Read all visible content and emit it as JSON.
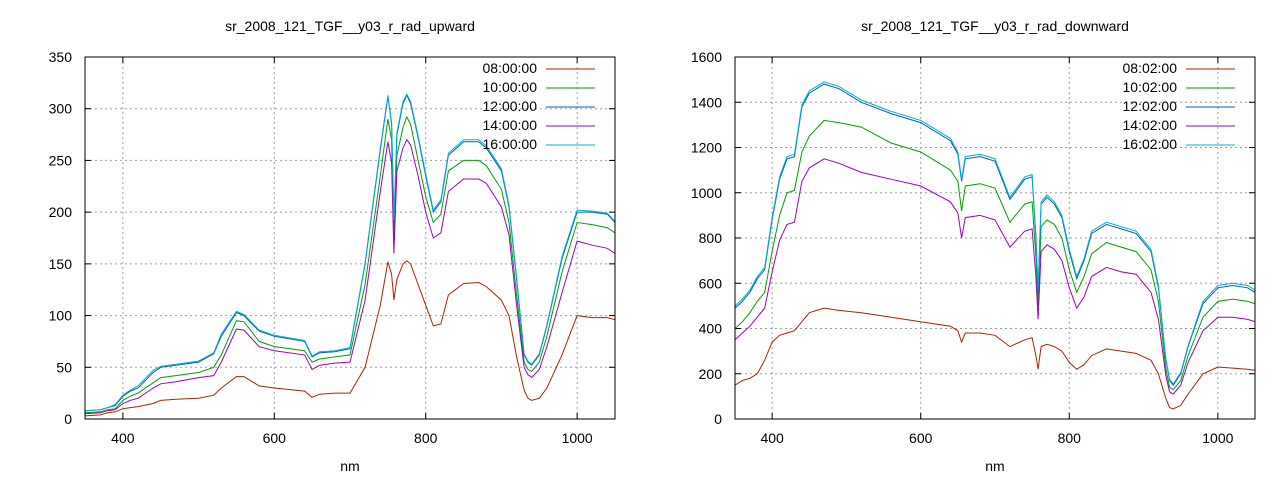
{
  "chart_data": [
    {
      "type": "line",
      "title": "sr_2008_121_TGF__y03_r_rad_upward",
      "xlabel": "nm",
      "ylabel": "",
      "xlim": [
        350,
        1050
      ],
      "ylim": [
        0,
        350
      ],
      "xticks": [
        400,
        600,
        800,
        1000
      ],
      "yticks": [
        0,
        50,
        100,
        150,
        200,
        250,
        300,
        350
      ],
      "grid": true,
      "legend_position": "top-right",
      "series": [
        {
          "name": "08:00:00",
          "color": "#b22200",
          "x": [
            350,
            370,
            380,
            390,
            400,
            410,
            420,
            440,
            450,
            470,
            500,
            520,
            530,
            550,
            560,
            580,
            600,
            640,
            650,
            660,
            680,
            700,
            720,
            740,
            750,
            755,
            758,
            762,
            770,
            775,
            780,
            790,
            800,
            810,
            820,
            830,
            850,
            870,
            880,
            900,
            910,
            920,
            930,
            935,
            940,
            950,
            960,
            980,
            1000,
            1020,
            1040,
            1050
          ],
          "y": [
            3,
            4,
            6,
            7,
            10,
            11,
            12,
            15,
            18,
            19,
            20,
            23,
            30,
            41,
            41,
            32,
            30,
            27,
            21,
            24,
            25,
            25,
            50,
            110,
            152,
            140,
            115,
            135,
            150,
            153,
            150,
            130,
            110,
            90,
            92,
            120,
            131,
            132,
            128,
            115,
            100,
            60,
            28,
            20,
            18,
            20,
            30,
            62,
            100,
            98,
            98,
            96
          ]
        },
        {
          "name": "10:00:00",
          "color": "#00a000",
          "x": [
            350,
            370,
            380,
            390,
            400,
            410,
            420,
            440,
            450,
            470,
            500,
            520,
            530,
            550,
            560,
            580,
            600,
            640,
            650,
            660,
            680,
            700,
            720,
            740,
            750,
            755,
            758,
            762,
            770,
            775,
            780,
            790,
            800,
            810,
            820,
            830,
            850,
            870,
            880,
            900,
            910,
            920,
            930,
            935,
            940,
            950,
            960,
            980,
            1000,
            1020,
            1040,
            1050
          ],
          "y": [
            6,
            7,
            9,
            10,
            18,
            22,
            25,
            35,
            40,
            42,
            45,
            50,
            62,
            95,
            94,
            75,
            70,
            66,
            55,
            58,
            60,
            62,
            130,
            235,
            290,
            270,
            170,
            255,
            282,
            292,
            285,
            250,
            215,
            190,
            198,
            240,
            250,
            250,
            245,
            222,
            190,
            120,
            55,
            48,
            46,
            55,
            80,
            142,
            190,
            188,
            185,
            180
          ]
        },
        {
          "name": "12:00:00",
          "color": "#0060b0",
          "x": [
            350,
            370,
            380,
            390,
            400,
            410,
            420,
            440,
            450,
            470,
            500,
            520,
            530,
            550,
            560,
            580,
            600,
            640,
            650,
            660,
            680,
            700,
            720,
            740,
            750,
            755,
            758,
            762,
            770,
            775,
            780,
            790,
            800,
            810,
            820,
            830,
            850,
            870,
            880,
            900,
            910,
            920,
            930,
            935,
            940,
            950,
            960,
            980,
            1000,
            1020,
            1040,
            1050
          ],
          "y": [
            8,
            9,
            11,
            13,
            22,
            27,
            30,
            45,
            50,
            52,
            55,
            63,
            80,
            103,
            100,
            85,
            80,
            75,
            60,
            64,
            65,
            68,
            150,
            260,
            312,
            285,
            190,
            275,
            305,
            313,
            305,
            272,
            235,
            200,
            210,
            255,
            268,
            268,
            262,
            240,
            205,
            135,
            62,
            55,
            52,
            62,
            90,
            155,
            200,
            200,
            198,
            190
          ]
        },
        {
          "name": "14:00:00",
          "color": "#a000c0",
          "x": [
            350,
            370,
            380,
            390,
            400,
            410,
            420,
            440,
            450,
            470,
            500,
            520,
            530,
            550,
            560,
            580,
            600,
            640,
            650,
            660,
            680,
            700,
            720,
            740,
            750,
            755,
            758,
            762,
            770,
            775,
            780,
            790,
            800,
            810,
            820,
            830,
            850,
            870,
            880,
            900,
            910,
            920,
            930,
            935,
            940,
            950,
            960,
            980,
            1000,
            1020,
            1040,
            1050
          ],
          "y": [
            5,
            6,
            8,
            9,
            15,
            18,
            20,
            30,
            34,
            36,
            40,
            42,
            55,
            87,
            86,
            70,
            66,
            62,
            48,
            52,
            54,
            55,
            115,
            220,
            268,
            248,
            160,
            240,
            262,
            270,
            265,
            235,
            200,
            175,
            180,
            220,
            232,
            232,
            228,
            205,
            178,
            110,
            50,
            43,
            40,
            48,
            70,
            122,
            172,
            168,
            165,
            160
          ]
        },
        {
          "name": "16:00:00",
          "color": "#00b0d0",
          "x": [
            350,
            370,
            380,
            390,
            400,
            410,
            420,
            440,
            450,
            470,
            500,
            520,
            530,
            550,
            560,
            580,
            600,
            640,
            650,
            660,
            680,
            700,
            720,
            740,
            750,
            755,
            758,
            762,
            770,
            775,
            780,
            790,
            800,
            810,
            820,
            830,
            850,
            870,
            880,
            900,
            910,
            920,
            930,
            935,
            940,
            950,
            960,
            980,
            1000,
            1020,
            1040,
            1050
          ],
          "y": [
            8,
            9,
            11,
            14,
            23,
            28,
            32,
            47,
            51,
            53,
            56,
            64,
            82,
            104,
            101,
            86,
            81,
            76,
            61,
            65,
            66,
            69,
            151,
            262,
            313,
            287,
            192,
            277,
            307,
            314,
            307,
            274,
            237,
            202,
            212,
            257,
            270,
            270,
            264,
            242,
            207,
            137,
            63,
            56,
            53,
            63,
            91,
            157,
            202,
            201,
            199,
            191
          ]
        }
      ]
    },
    {
      "type": "line",
      "title": "sr_2008_121_TGF__y03_r_rad_downward",
      "xlabel": "nm",
      "ylabel": "",
      "xlim": [
        350,
        1050
      ],
      "ylim": [
        0,
        1600
      ],
      "xticks": [
        400,
        600,
        800,
        1000
      ],
      "yticks": [
        0,
        200,
        400,
        600,
        800,
        1000,
        1200,
        1400,
        1600
      ],
      "grid": true,
      "legend_position": "top-right",
      "series": [
        {
          "name": "08:02:00",
          "color": "#b22200",
          "x": [
            350,
            360,
            370,
            380,
            390,
            400,
            410,
            420,
            430,
            440,
            450,
            470,
            490,
            520,
            560,
            600,
            640,
            650,
            655,
            660,
            680,
            700,
            720,
            740,
            750,
            755,
            758,
            762,
            770,
            780,
            790,
            800,
            810,
            820,
            830,
            850,
            870,
            890,
            910,
            920,
            930,
            935,
            940,
            950,
            960,
            980,
            1000,
            1020,
            1040,
            1050
          ],
          "y": [
            150,
            170,
            180,
            200,
            260,
            340,
            370,
            380,
            390,
            430,
            470,
            490,
            480,
            470,
            450,
            430,
            410,
            390,
            340,
            380,
            380,
            370,
            320,
            350,
            360,
            280,
            220,
            320,
            330,
            320,
            300,
            250,
            220,
            240,
            280,
            310,
            300,
            290,
            260,
            200,
            90,
            50,
            45,
            60,
            110,
            200,
            230,
            225,
            220,
            215
          ]
        },
        {
          "name": "10:02:00",
          "color": "#00a000",
          "x": [
            350,
            360,
            370,
            380,
            390,
            400,
            410,
            420,
            430,
            440,
            450,
            470,
            490,
            520,
            560,
            600,
            640,
            650,
            655,
            660,
            680,
            700,
            720,
            740,
            750,
            755,
            758,
            762,
            770,
            780,
            790,
            800,
            810,
            820,
            830,
            850,
            870,
            890,
            910,
            920,
            930,
            935,
            940,
            950,
            960,
            980,
            1000,
            1020,
            1040,
            1050
          ],
          "y": [
            400,
            430,
            470,
            520,
            560,
            740,
            900,
            1000,
            1010,
            1180,
            1250,
            1320,
            1310,
            1290,
            1220,
            1180,
            1100,
            1050,
            920,
            1030,
            1040,
            1020,
            870,
            950,
            960,
            720,
            500,
            850,
            880,
            860,
            800,
            660,
            560,
            630,
            730,
            780,
            760,
            740,
            660,
            520,
            220,
            140,
            130,
            170,
            280,
            450,
            520,
            530,
            520,
            510
          ]
        },
        {
          "name": "12:02:00",
          "color": "#0060b0",
          "x": [
            350,
            360,
            370,
            380,
            390,
            400,
            410,
            420,
            430,
            440,
            450,
            470,
            490,
            520,
            560,
            600,
            640,
            650,
            655,
            660,
            680,
            700,
            720,
            740,
            750,
            755,
            758,
            762,
            770,
            780,
            790,
            800,
            810,
            820,
            830,
            850,
            870,
            890,
            910,
            920,
            930,
            935,
            940,
            950,
            960,
            980,
            1000,
            1020,
            1040,
            1050
          ],
          "y": [
            490,
            520,
            560,
            620,
            660,
            880,
            1060,
            1150,
            1160,
            1380,
            1440,
            1480,
            1460,
            1400,
            1350,
            1310,
            1230,
            1170,
            1050,
            1150,
            1160,
            1140,
            970,
            1060,
            1070,
            800,
            560,
            950,
            980,
            950,
            890,
            740,
            620,
            700,
            820,
            860,
            840,
            820,
            740,
            580,
            260,
            170,
            150,
            200,
            320,
            510,
            580,
            590,
            580,
            560
          ]
        },
        {
          "name": "14:02:00",
          "color": "#a000c0",
          "x": [
            350,
            360,
            370,
            380,
            390,
            400,
            410,
            420,
            430,
            440,
            450,
            470,
            490,
            520,
            560,
            600,
            640,
            650,
            655,
            660,
            680,
            700,
            720,
            740,
            750,
            755,
            758,
            762,
            770,
            780,
            790,
            800,
            810,
            820,
            830,
            850,
            870,
            890,
            910,
            920,
            930,
            935,
            940,
            950,
            960,
            980,
            1000,
            1020,
            1040,
            1050
          ],
          "y": [
            350,
            380,
            410,
            450,
            490,
            650,
            790,
            860,
            870,
            1050,
            1110,
            1150,
            1130,
            1090,
            1060,
            1030,
            960,
            910,
            800,
            890,
            900,
            880,
            760,
            830,
            840,
            630,
            440,
            740,
            770,
            750,
            700,
            580,
            490,
            540,
            630,
            670,
            650,
            640,
            560,
            440,
            190,
            120,
            110,
            150,
            250,
            390,
            450,
            450,
            440,
            430
          ]
        },
        {
          "name": "16:02:00",
          "color": "#00b0d0",
          "x": [
            350,
            360,
            370,
            380,
            390,
            400,
            410,
            420,
            430,
            440,
            450,
            470,
            490,
            520,
            560,
            600,
            640,
            650,
            655,
            660,
            680,
            700,
            720,
            740,
            750,
            755,
            758,
            762,
            770,
            780,
            790,
            800,
            810,
            820,
            830,
            850,
            870,
            890,
            910,
            920,
            930,
            935,
            940,
            950,
            960,
            980,
            1000,
            1020,
            1040,
            1050
          ],
          "y": [
            500,
            530,
            570,
            630,
            670,
            890,
            1070,
            1160,
            1170,
            1390,
            1450,
            1490,
            1470,
            1410,
            1360,
            1320,
            1240,
            1180,
            1060,
            1160,
            1170,
            1150,
            980,
            1070,
            1080,
            810,
            570,
            960,
            990,
            960,
            900,
            750,
            630,
            710,
            830,
            870,
            850,
            830,
            750,
            590,
            265,
            175,
            155,
            205,
            325,
            520,
            590,
            600,
            590,
            570
          ]
        }
      ]
    }
  ]
}
